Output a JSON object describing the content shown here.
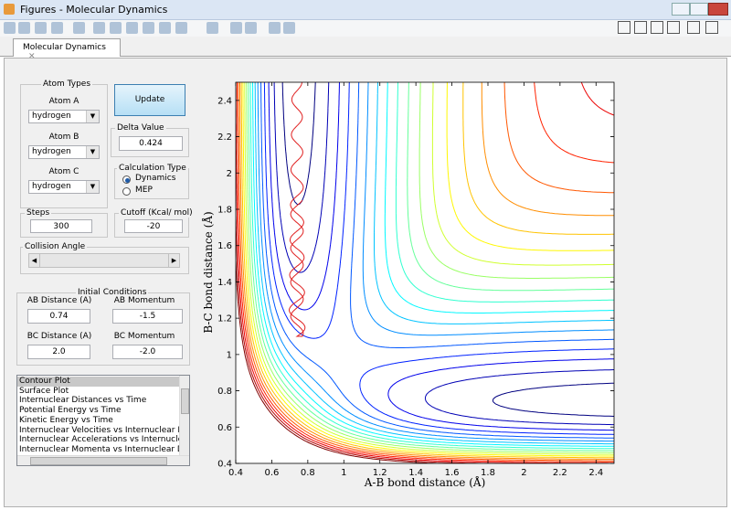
{
  "window": {
    "title": "Figures - Molecular Dynamics"
  },
  "tab": {
    "label": "Molecular Dynamics"
  },
  "atom_types": {
    "title": "Atom Types",
    "atoms": [
      {
        "label": "Atom A",
        "value": "hydrogen"
      },
      {
        "label": "Atom B",
        "value": "hydrogen"
      },
      {
        "label": "Atom C",
        "value": "hydrogen"
      }
    ]
  },
  "update_button": "Update",
  "delta_value": {
    "label": "Delta Value",
    "value": "0.424"
  },
  "calculation_type": {
    "title": "Calculation Type",
    "options": [
      "Dynamics",
      "MEP"
    ],
    "selected": "Dynamics"
  },
  "steps": {
    "label": "Steps",
    "value": "300"
  },
  "cutoff": {
    "label": "Cutoff (Kcal/ mol)",
    "value": "-20"
  },
  "collision_angle": {
    "label": "Collision Angle"
  },
  "initial_conditions": {
    "title": "Initial Conditions",
    "fields": [
      {
        "label": "AB Distance (A)",
        "value": "0.74"
      },
      {
        "label": "AB Momentum",
        "value": "-1.5"
      },
      {
        "label": "BC Distance (A)",
        "value": "2.0"
      },
      {
        "label": "BC Momentum",
        "value": "-2.0"
      }
    ]
  },
  "plot_list": {
    "items": [
      "Contour Plot",
      "Surface Plot",
      "Internuclear Distances vs Time",
      "Potential Energy vs Time",
      "Kinetic Energy vs Time",
      "Internuclear Velocities vs Internuclear Distance",
      "Internuclear Accelerations vs Internuclear Distance",
      "Internuclear Momenta vs Internuclear Distance"
    ],
    "selected": "Contour Plot"
  },
  "chart_data": {
    "type": "contour",
    "xlabel": "A-B bond distance (Å)",
    "ylabel": "B-C bond distance (Å)",
    "xlim": [
      0.4,
      2.5
    ],
    "ylim": [
      0.4,
      2.5
    ],
    "xticks": [
      0.4,
      0.6,
      0.8,
      1,
      1.2,
      1.4,
      1.6,
      1.8,
      2,
      2.2,
      2.4
    ],
    "yticks": [
      0.4,
      0.6,
      0.8,
      1,
      1.2,
      1.4,
      1.6,
      1.8,
      2,
      2.2,
      2.4
    ]
  }
}
